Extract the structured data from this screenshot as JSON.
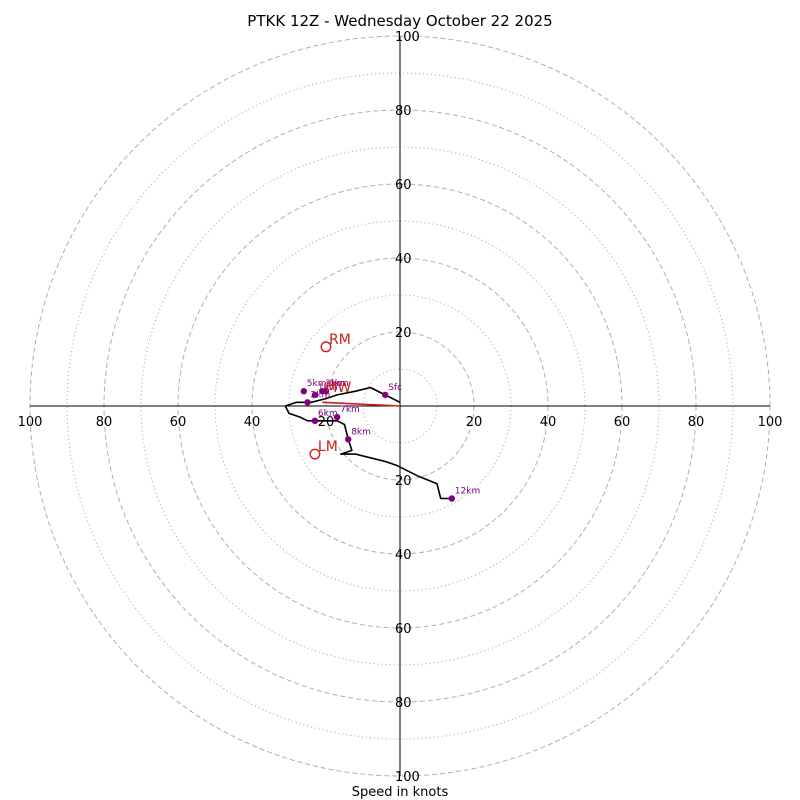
{
  "chart_data": {
    "type": "scatter",
    "subtype": "hodograph",
    "title": "PTKK 12Z - Wednesday October 22 2025",
    "xlabel": "Speed in knots",
    "axis_range": [
      -100,
      100
    ],
    "tick_values": [
      20,
      40,
      60,
      80,
      100
    ],
    "solid_ring_labels": [
      "20",
      "40",
      "60",
      "80",
      "100"
    ],
    "axis_tick_labels": {
      "top": [
        "20",
        "40",
        "60",
        "80",
        "100"
      ],
      "bottom": [
        "20",
        "40",
        "60",
        "80",
        "100"
      ],
      "left": [
        "20",
        "40",
        "60",
        "80",
        "100"
      ],
      "right": [
        "20",
        "40",
        "60",
        "80",
        "100"
      ]
    },
    "rings_dashed": [
      20,
      40,
      60,
      80,
      100
    ],
    "rings_dotted": [
      10,
      30,
      50,
      70,
      90
    ],
    "grid": true,
    "colors": {
      "profile": "#000000",
      "height_markers": "#800080",
      "motion_markers": "#cc1f1a",
      "shear_vector": "#cc1f1a",
      "grid": "#b0b0b0"
    },
    "profile": [
      [
        0,
        1
      ],
      [
        -4,
        3
      ],
      [
        -8,
        5
      ],
      [
        -12,
        4
      ],
      [
        -17,
        3
      ],
      [
        -20,
        2
      ],
      [
        -24,
        1
      ],
      [
        -28,
        1
      ],
      [
        -31,
        0
      ],
      [
        -30,
        -2
      ],
      [
        -27,
        -3
      ],
      [
        -25,
        -4
      ],
      [
        -23,
        -4
      ],
      [
        -21,
        -4
      ],
      [
        -19,
        -4
      ],
      [
        -17,
        -4
      ],
      [
        -15,
        -5
      ],
      [
        -14,
        -9
      ],
      [
        -13,
        -12
      ],
      [
        -16,
        -13
      ],
      [
        -12,
        -13
      ],
      [
        -8,
        -14
      ],
      [
        -4,
        -15
      ],
      [
        -1,
        -16
      ],
      [
        5,
        -19
      ],
      [
        10,
        -21
      ],
      [
        11,
        -25
      ],
      [
        12,
        -25
      ],
      [
        14,
        -25
      ]
    ],
    "height_markers": [
      {
        "label": "Sfc",
        "u": -4,
        "v": 3
      },
      {
        "label": "1km",
        "u": -23,
        "v": 3
      },
      {
        "label": "2km",
        "u": -25,
        "v": 1
      },
      {
        "label": "3km",
        "u": -21,
        "v": 4
      },
      {
        "label": "4km",
        "u": -20,
        "v": 4
      },
      {
        "label": "5km",
        "u": -26,
        "v": 4
      },
      {
        "label": "6km",
        "u": -23,
        "v": -4
      },
      {
        "label": "7km",
        "u": -17,
        "v": -3
      },
      {
        "label": "8km",
        "u": -14,
        "v": -9
      },
      {
        "label": "12km",
        "u": 14,
        "v": -25
      }
    ],
    "storm_motion": [
      {
        "label": "RM",
        "u": -20,
        "v": 16
      },
      {
        "label": "LM",
        "u": -23,
        "v": -13
      },
      {
        "label": "MW",
        "u": -21,
        "v": 3
      }
    ],
    "shear_vector": {
      "from": [
        -21,
        1
      ],
      "to": [
        0,
        0
      ]
    }
  }
}
